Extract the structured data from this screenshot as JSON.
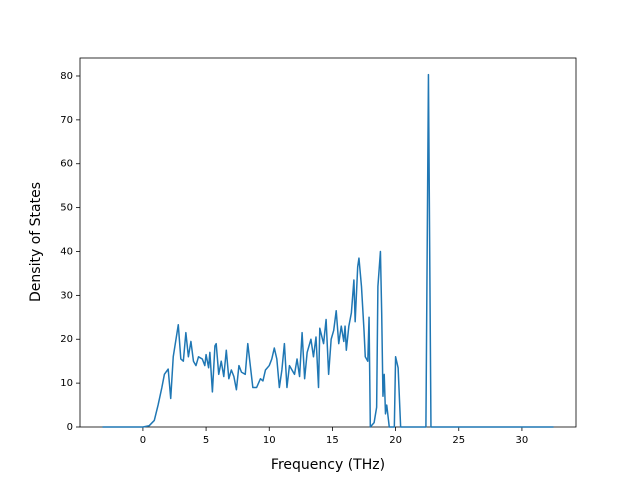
{
  "chart_data": {
    "type": "line",
    "x_label": "Frequency (THz)",
    "y_label": "Density of States",
    "xlim": [
      -4.98,
      34.28
    ],
    "ylim": [
      0,
      84.1
    ],
    "xticks": [
      0,
      5,
      10,
      15,
      20,
      25,
      30
    ],
    "yticks": [
      0,
      10,
      20,
      30,
      40,
      50,
      60,
      70,
      80
    ],
    "series": [
      {
        "color": "#1f77b4",
        "x": [
          -3.2,
          0,
          0.5,
          0.9,
          1.2,
          1.5,
          1.7,
          2.0,
          2.2,
          2.4,
          2.8,
          3.0,
          3.2,
          3.4,
          3.6,
          3.8,
          4.0,
          4.2,
          4.4,
          4.7,
          4.9,
          5.0,
          5.2,
          5.3,
          5.5,
          5.7,
          5.8,
          6.0,
          6.2,
          6.4,
          6.6,
          6.8,
          7.0,
          7.2,
          7.4,
          7.6,
          7.8,
          8.1,
          8.3,
          8.5,
          8.7,
          9.0,
          9.3,
          9.5,
          9.7,
          10.0,
          10.2,
          10.4,
          10.6,
          10.8,
          11.0,
          11.2,
          11.4,
          11.6,
          11.8,
          12.0,
          12.2,
          12.4,
          12.6,
          12.8,
          13.0,
          13.3,
          13.5,
          13.7,
          13.9,
          14.0,
          14.3,
          14.5,
          14.7,
          14.9,
          15.1,
          15.3,
          15.5,
          15.7,
          15.9,
          16.0,
          16.1,
          16.3,
          16.5,
          16.7,
          16.8,
          17.0,
          17.1,
          17.3,
          17.5,
          17.6,
          17.8,
          17.9,
          18.0,
          18.3,
          18.5,
          18.6,
          18.8,
          18.9,
          19.0,
          19.1,
          19.2,
          19.3,
          19.5,
          19.9,
          20.0,
          20.2,
          20.4,
          22.4,
          22.6,
          22.8,
          32.5
        ],
        "values": [
          0,
          0,
          0.3,
          1.5,
          5,
          9,
          12,
          13.2,
          6.5,
          16,
          23.3,
          15.5,
          15,
          21.5,
          16,
          19.5,
          15,
          14,
          16,
          15.5,
          14,
          16.5,
          13.5,
          17,
          8,
          18.5,
          19,
          12,
          15,
          11.5,
          17.5,
          11,
          13,
          11.5,
          8.5,
          14,
          12.5,
          12,
          19,
          14,
          9,
          9,
          11,
          10.5,
          13,
          14,
          15.5,
          18,
          15.5,
          9,
          13,
          19,
          9,
          14,
          13,
          12,
          15.5,
          11.5,
          21.5,
          11,
          17,
          20,
          16,
          20.5,
          9,
          22.5,
          19,
          24.5,
          12,
          20,
          22,
          26.5,
          19,
          23,
          19.5,
          23,
          17.5,
          23,
          26,
          33.5,
          24,
          36.5,
          38.5,
          32,
          22,
          16,
          15,
          25,
          0,
          1,
          4.5,
          32,
          40,
          26,
          7,
          12,
          3,
          5,
          0,
          0,
          16,
          13.5,
          0,
          0,
          80.3,
          0,
          0
        ]
      }
    ]
  }
}
